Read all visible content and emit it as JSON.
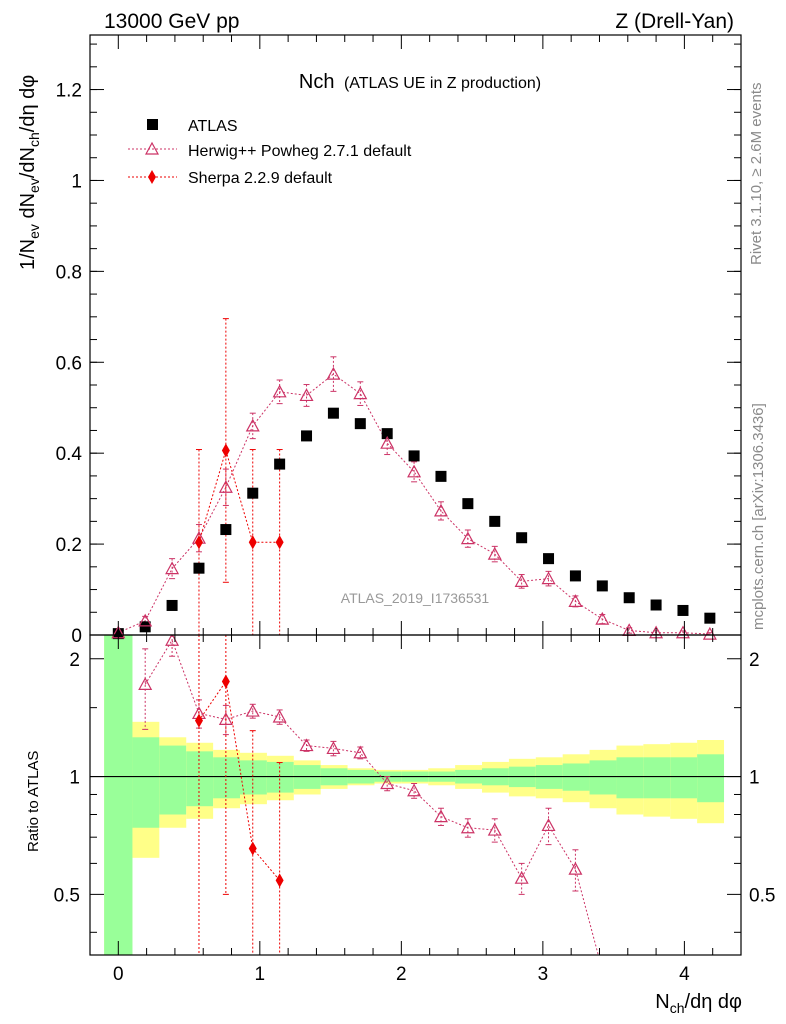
{
  "header": {
    "left": "13000 GeV pp",
    "right": "Z (Drell-Yan)"
  },
  "side_text": {
    "rivet": "Rivet 3.1.10, ≥ 2.6M events",
    "mcplots": "mcplots.cern.ch [arXiv:1306.3436]"
  },
  "chart_data": [
    {
      "type": "scatter",
      "panel": "main",
      "title": "Nch",
      "subtitle": "(ATLAS UE in Z production)",
      "watermark": "ATLAS_2019_I1736531",
      "ylabel": "1/N_ev dN_ev/dN_ch/dη dφ",
      "xlabel": "N_ch/dη dφ",
      "xlim": [
        -0.2,
        4.4
      ],
      "ylim": [
        0,
        1.32
      ],
      "yticks": [
        0,
        0.2,
        0.4,
        0.6,
        0.8,
        1,
        1.2
      ],
      "ytick_labels": [
        "0",
        "0.2",
        "0.4",
        "0.6",
        "0.8",
        "1",
        "1.2"
      ],
      "legend": [
        "ATLAS",
        "Herwig++ Powheg 2.7.1 default",
        "Sherpa 2.2.9 default"
      ],
      "series": [
        {
          "name": "ATLAS",
          "marker": "square",
          "color": "#000000",
          "x": [
            0,
            0.19,
            0.38,
            0.57,
            0.76,
            0.95,
            1.14,
            1.33,
            1.52,
            1.71,
            1.9,
            2.09,
            2.28,
            2.47,
            2.66,
            2.85,
            3.04,
            3.23,
            3.42,
            3.61,
            3.8,
            3.99,
            4.18
          ],
          "y": [
            0.003,
            0.018,
            0.065,
            0.147,
            0.232,
            0.312,
            0.376,
            0.438,
            0.488,
            0.465,
            0.443,
            0.394,
            0.349,
            0.289,
            0.25,
            0.214,
            0.168,
            0.13,
            0.108,
            0.082,
            0.066,
            0.054,
            0.037
          ]
        },
        {
          "name": "Herwig++ Powheg 2.7.1 default",
          "marker": "open-triangle",
          "color": "#cc3366",
          "x": [
            0,
            0.19,
            0.38,
            0.57,
            0.76,
            0.95,
            1.14,
            1.33,
            1.52,
            1.71,
            1.9,
            2.09,
            2.28,
            2.47,
            2.66,
            2.85,
            3.04,
            3.23,
            3.42,
            3.61,
            3.8,
            3.99,
            4.18
          ],
          "y": [
            0.005,
            0.031,
            0.146,
            0.213,
            0.325,
            0.46,
            0.535,
            0.527,
            0.574,
            0.531,
            0.422,
            0.359,
            0.273,
            0.212,
            0.178,
            0.118,
            0.124,
            0.074,
            0.035,
            0.01,
            0.005,
            0.005,
            0.002
          ],
          "err": [
            0.004,
            0.01,
            0.022,
            0.03,
            0.04,
            0.028,
            0.026,
            0.024,
            0.038,
            0.026,
            0.025,
            0.022,
            0.02,
            0.019,
            0.017,
            0.015,
            0.016,
            0.012,
            0.01,
            0.006,
            0.004,
            0.004,
            0.003
          ]
        },
        {
          "name": "Sherpa 2.2.9 default",
          "marker": "diamond",
          "color": "#ee0000",
          "x": [
            0.57,
            0.76,
            0.95,
            1.14
          ],
          "y": [
            0.204,
            0.406,
            0.204,
            0.204
          ],
          "err": [
            0.204,
            0.29,
            0.204,
            0.204
          ]
        }
      ]
    },
    {
      "type": "scatter",
      "panel": "ratio",
      "ylabel": "Ratio to ATLAS",
      "xlabel": "N_ch/dη dφ",
      "xlim": [
        -0.2,
        4.4
      ],
      "ylim": [
        0.35,
        2.3
      ],
      "yscale": "log",
      "yticks": [
        0.5,
        1,
        2
      ],
      "ytick_labels": [
        "0.5",
        "1",
        "2"
      ],
      "xticks": [
        0,
        1,
        2,
        3,
        4
      ],
      "xtick_labels": [
        "0",
        "1",
        "2",
        "3",
        "4"
      ],
      "bands": {
        "edges": [
          -0.1,
          0.1,
          0.29,
          0.48,
          0.67,
          0.86,
          1.05,
          1.24,
          1.43,
          1.62,
          1.81,
          2.0,
          2.19,
          2.38,
          2.57,
          2.76,
          2.95,
          3.14,
          3.33,
          3.52,
          3.71,
          3.9,
          4.09,
          4.28
        ],
        "green_half": [
          1.3,
          0.26,
          0.2,
          0.16,
          0.12,
          0.1,
          0.09,
          0.07,
          0.05,
          0.04,
          0.03,
          0.03,
          0.03,
          0.04,
          0.05,
          0.06,
          0.07,
          0.08,
          0.1,
          0.12,
          0.12,
          0.12,
          0.14
        ],
        "yellow_half": [
          1.3,
          0.38,
          0.26,
          0.22,
          0.17,
          0.15,
          0.13,
          0.1,
          0.07,
          0.05,
          0.04,
          0.04,
          0.05,
          0.07,
          0.09,
          0.11,
          0.12,
          0.14,
          0.17,
          0.2,
          0.21,
          0.22,
          0.24
        ]
      },
      "series": [
        {
          "name": "Herwig++ Powheg 2.7.1 default",
          "x": [
            0.19,
            0.38,
            0.57,
            0.76,
            0.95,
            1.14,
            1.33,
            1.52,
            1.71,
            1.9,
            2.09,
            2.28,
            2.47,
            2.66,
            2.85,
            3.04,
            3.23,
            3.42
          ],
          "y": [
            1.72,
            2.23,
            1.45,
            1.4,
            1.47,
            1.42,
            1.2,
            1.18,
            1.15,
            0.96,
            0.92,
            0.79,
            0.74,
            0.73,
            0.55,
            0.75,
            0.58,
            0.32
          ],
          "err": [
            0.4,
            0.2,
            0.12,
            0.12,
            0.06,
            0.06,
            0.04,
            0.05,
            0.04,
            0.04,
            0.04,
            0.04,
            0.04,
            0.05,
            0.05,
            0.08,
            0.07,
            0.06
          ]
        },
        {
          "name": "Sherpa 2.2.9 default",
          "x": [
            0.57,
            0.76,
            0.95,
            1.14
          ],
          "y": [
            1.39,
            1.75,
            0.655,
            0.543
          ],
          "err": [
            1.39,
            1.25,
            0.655,
            0.543
          ]
        }
      ]
    }
  ]
}
